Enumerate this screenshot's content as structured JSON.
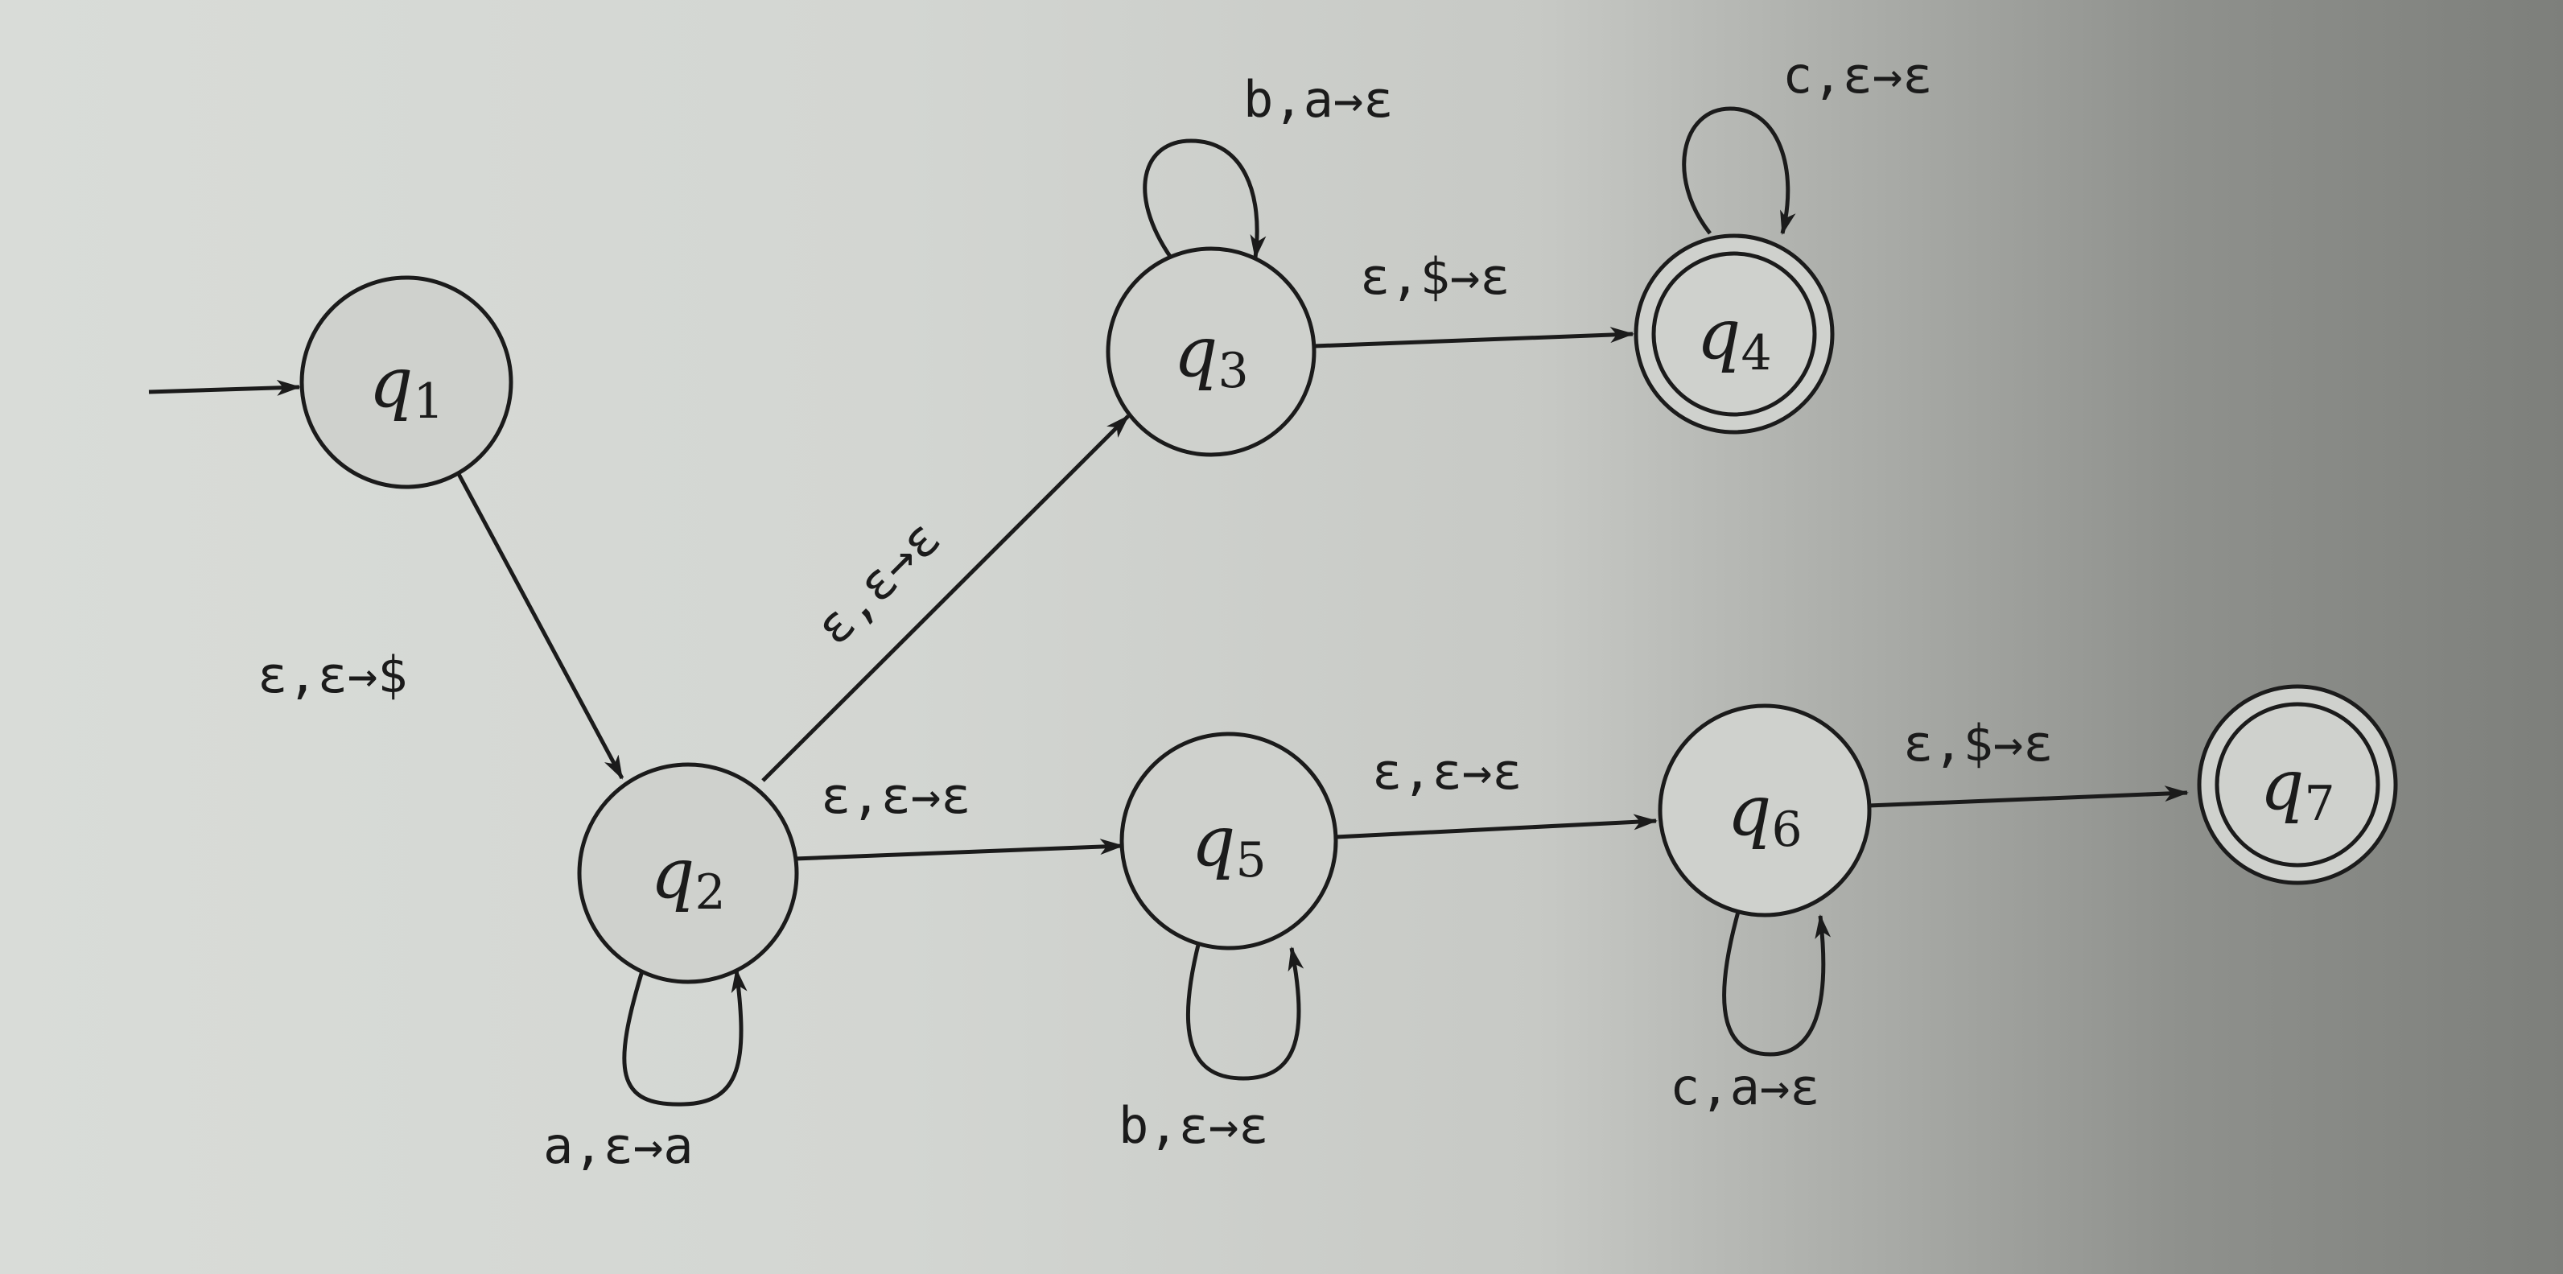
{
  "states": [
    {
      "id": "q1",
      "letter": "q",
      "index": "1",
      "start": true,
      "accept": false
    },
    {
      "id": "q2",
      "letter": "q",
      "index": "2",
      "start": false,
      "accept": false
    },
    {
      "id": "q3",
      "letter": "q",
      "index": "3",
      "start": false,
      "accept": false
    },
    {
      "id": "q4",
      "letter": "q",
      "index": "4",
      "start": false,
      "accept": true
    },
    {
      "id": "q5",
      "letter": "q",
      "index": "5",
      "start": false,
      "accept": false
    },
    {
      "id": "q6",
      "letter": "q",
      "index": "6",
      "start": false,
      "accept": false
    },
    {
      "id": "q7",
      "letter": "q",
      "index": "7",
      "start": false,
      "accept": true
    }
  ],
  "transitions": [
    {
      "id": "t-q1-q2",
      "from": "q1",
      "to": "q2",
      "label": "ε,ε→$"
    },
    {
      "id": "t-q2-q2",
      "from": "q2",
      "to": "q2",
      "label": "a,ε→a"
    },
    {
      "id": "t-q2-q3",
      "from": "q2",
      "to": "q3",
      "label": "ε,ε→ε"
    },
    {
      "id": "t-q3-q3",
      "from": "q3",
      "to": "q3",
      "label": "b,a→ε"
    },
    {
      "id": "t-q3-q4",
      "from": "q3",
      "to": "q4",
      "label": "ε,$→ε"
    },
    {
      "id": "t-q4-q4",
      "from": "q4",
      "to": "q4",
      "label": "c,ε→ε"
    },
    {
      "id": "t-q2-q5",
      "from": "q2",
      "to": "q5",
      "label": "ε,ε→ε"
    },
    {
      "id": "t-q5-q5",
      "from": "q5",
      "to": "q5",
      "label": "b,ε→ε"
    },
    {
      "id": "t-q5-q6",
      "from": "q5",
      "to": "q6",
      "label": "ε,ε→ε"
    },
    {
      "id": "t-q6-q6",
      "from": "q6",
      "to": "q6",
      "label": "c,a→ε"
    },
    {
      "id": "t-q6-q7",
      "from": "q6",
      "to": "q7",
      "label": "ε,$→ε"
    }
  ]
}
